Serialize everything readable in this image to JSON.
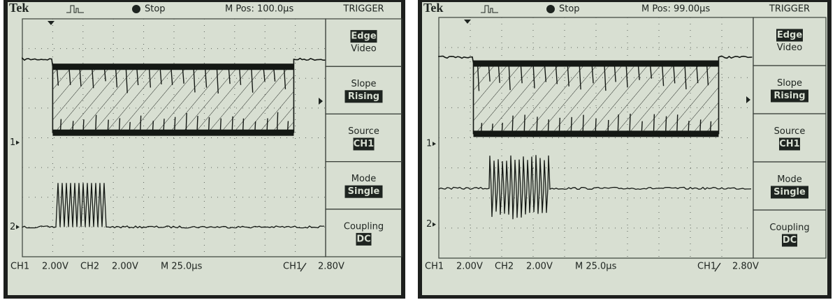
{
  "screens": [
    {
      "brand": "Tek",
      "status": "Stop",
      "position": "M Pos: 100.0µs",
      "menu_title": "TRIGGER",
      "menu": [
        {
          "lines": [
            "Edge",
            "Video"
          ],
          "selected": 0
        },
        {
          "lines": [
            "Slope",
            "Rising"
          ],
          "selected": 1
        },
        {
          "lines": [
            "Source",
            "CH1"
          ],
          "selected": 1
        },
        {
          "lines": [
            "Mode",
            "Single"
          ],
          "selected": 1
        },
        {
          "lines": [
            "Coupling",
            "DC"
          ],
          "selected": 1
        }
      ],
      "markers": [
        "1",
        "2"
      ],
      "readouts": [
        "CH1",
        "2.00V",
        "CH2",
        "2.00V",
        "M 25.0µs",
        "CH1",
        "2.80V"
      ]
    },
    {
      "brand": "Tek",
      "status": "Stop",
      "position": "M Pos: 99.00µs",
      "menu_title": "TRIGGER",
      "menu": [
        {
          "lines": [
            "Edge",
            "Video"
          ],
          "selected": 0
        },
        {
          "lines": [
            "Slope",
            "Rising"
          ],
          "selected": 1
        },
        {
          "lines": [
            "Source",
            "CH1"
          ],
          "selected": 1
        },
        {
          "lines": [
            "Mode",
            "Single"
          ],
          "selected": 1
        },
        {
          "lines": [
            "Coupling",
            "DC"
          ],
          "selected": 1
        }
      ],
      "markers": [
        "1",
        "2"
      ],
      "readouts": [
        "CH1",
        "2.00V",
        "CH2",
        "2.00V",
        "M 25.0µs",
        "CH1",
        "2.80V"
      ]
    }
  ]
}
